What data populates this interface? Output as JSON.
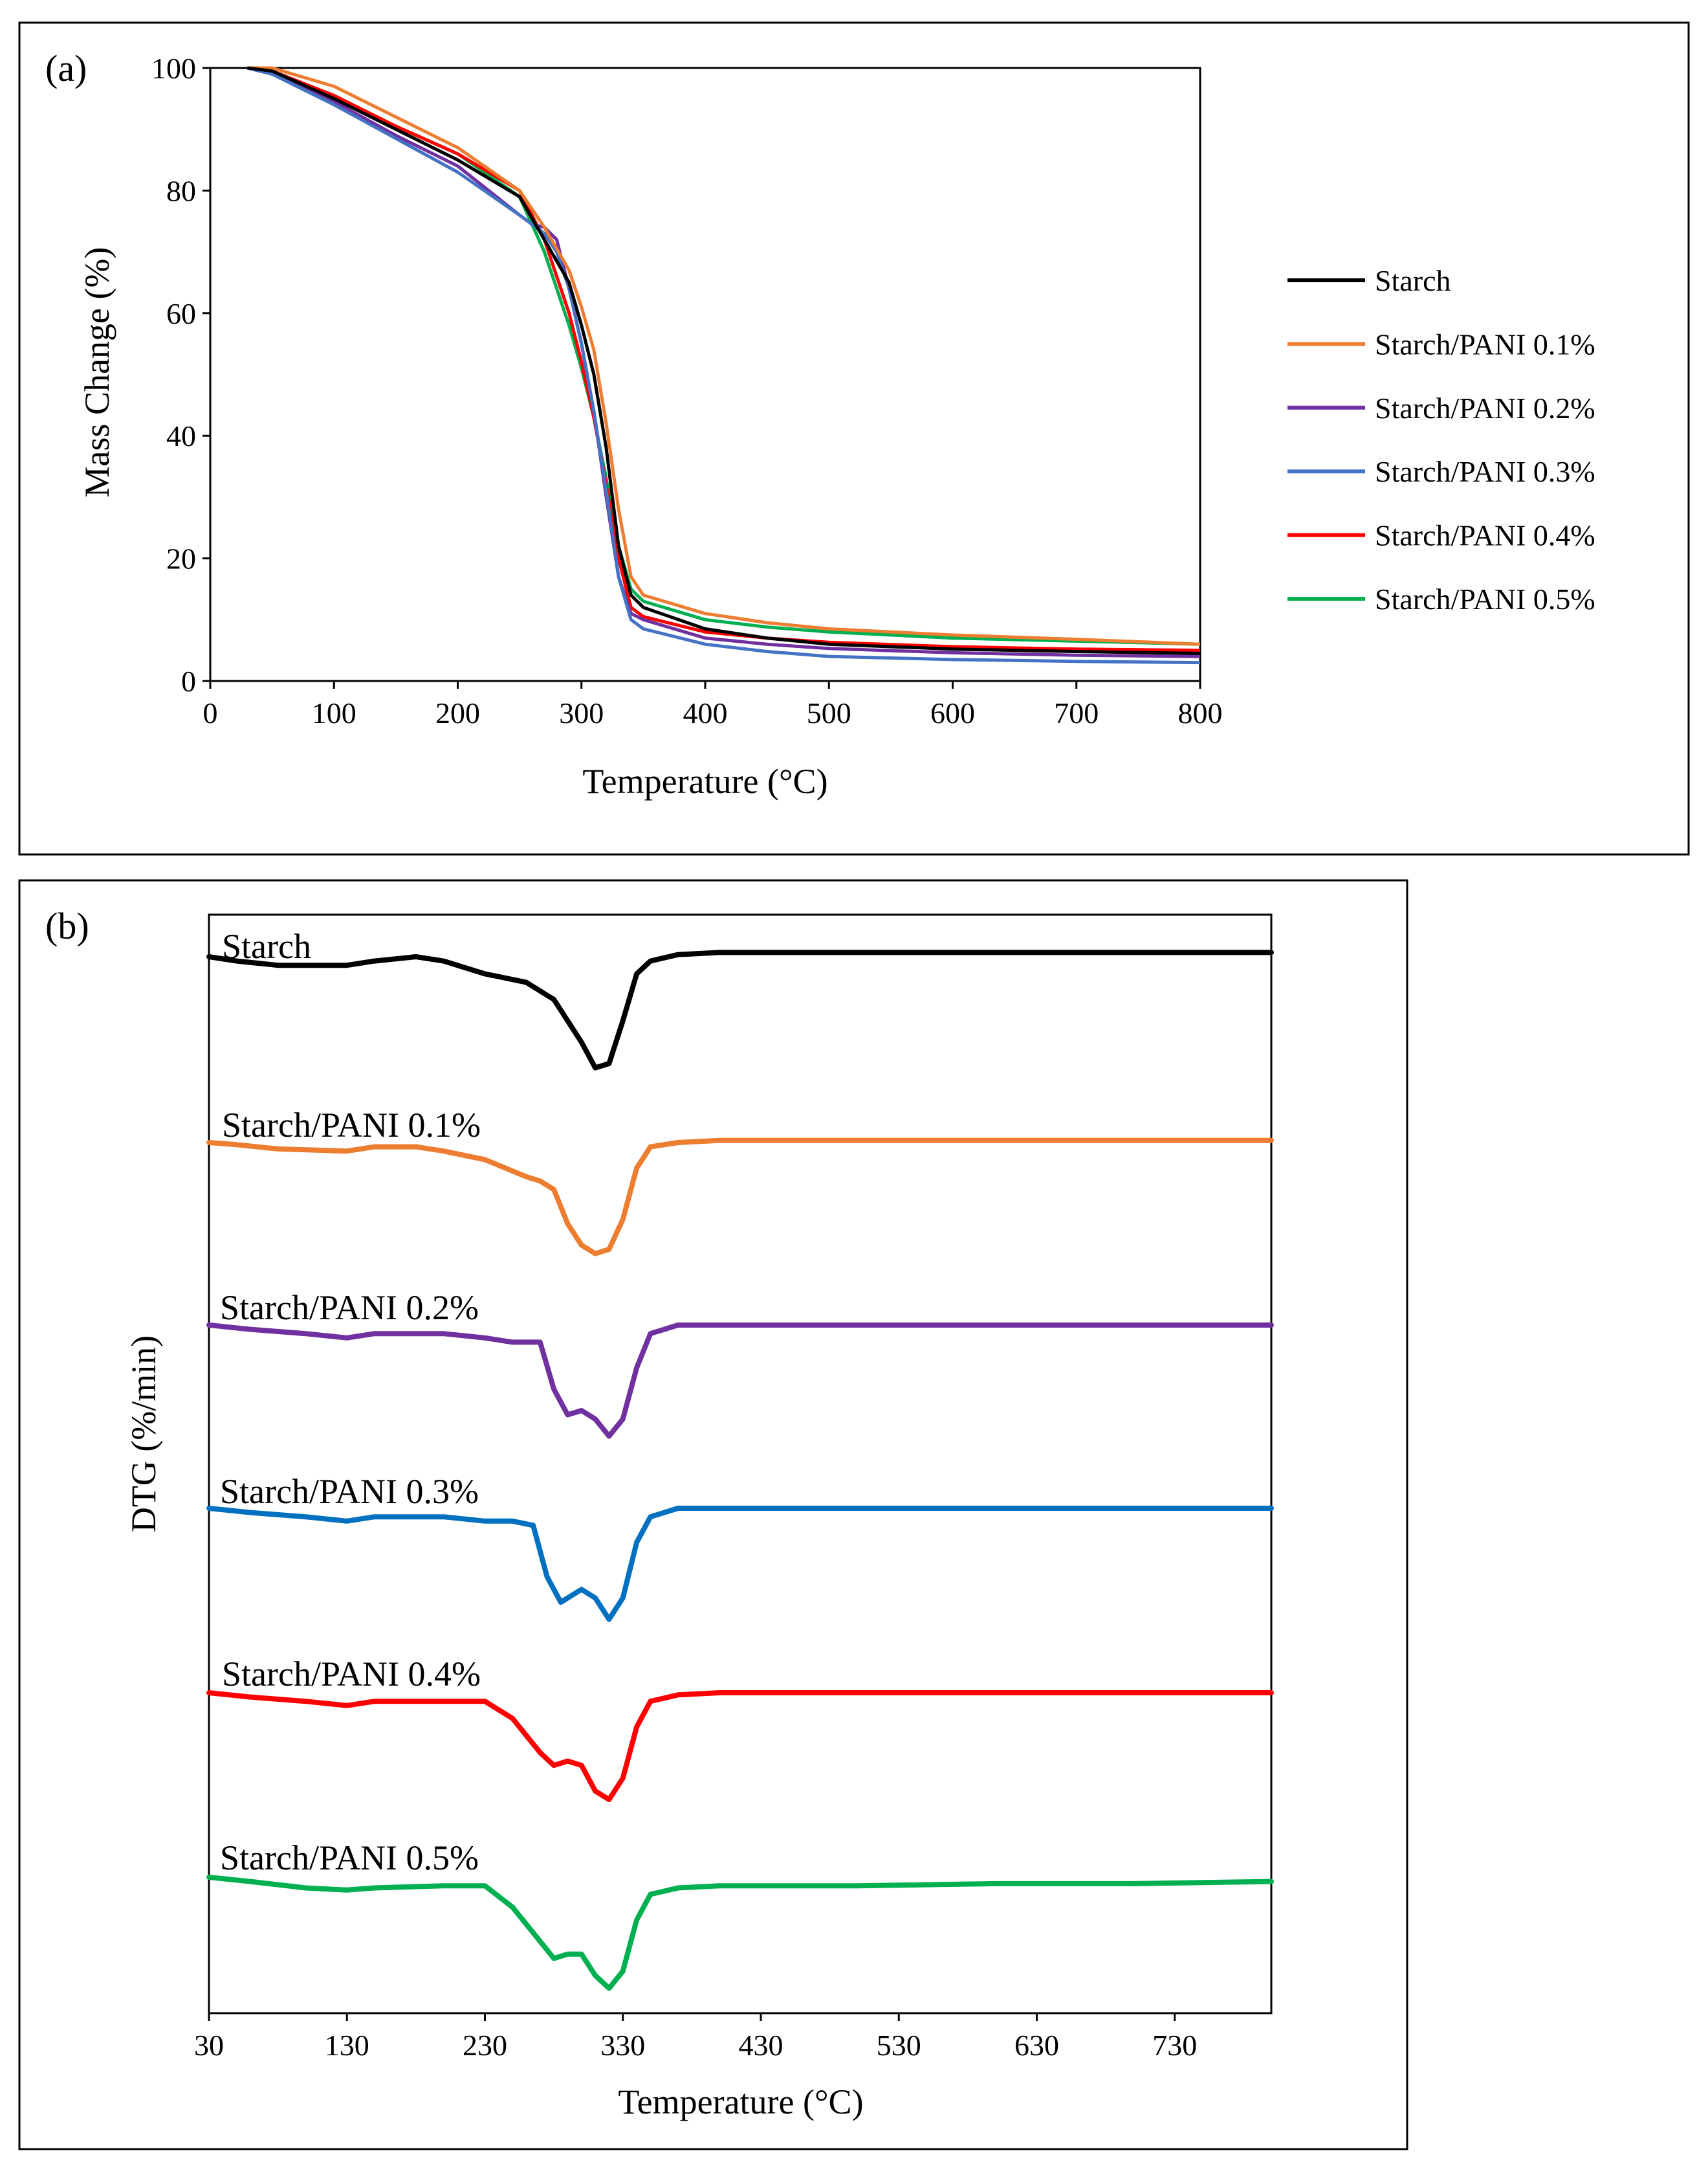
{
  "chart_data": [
    {
      "panel_label": "(a)",
      "type": "line",
      "title": "",
      "xlabel": "Temperature (°C)",
      "ylabel": "Mass Change (%)",
      "xlim": [
        0,
        800
      ],
      "ylim": [
        0,
        100
      ],
      "xticks": [
        0,
        100,
        200,
        300,
        400,
        500,
        600,
        700,
        800
      ],
      "yticks": [
        0,
        20,
        40,
        60,
        80,
        100
      ],
      "grid": false,
      "legend_position": "right",
      "series": [
        {
          "name": "Starch",
          "color": "#000000",
          "x": [
            30,
            50,
            100,
            150,
            200,
            250,
            270,
            290,
            300,
            310,
            320,
            330,
            340,
            350,
            400,
            450,
            500,
            600,
            700,
            800
          ],
          "y": [
            100,
            99.5,
            95,
            90,
            85,
            79,
            72,
            65,
            58,
            50,
            38,
            22,
            14,
            12,
            8.5,
            7,
            6,
            5.2,
            4.8,
            4.5
          ]
        },
        {
          "name": "Starch/PANI 0.1%",
          "color": "#ED7D31",
          "x": [
            30,
            50,
            100,
            150,
            200,
            250,
            270,
            290,
            300,
            310,
            320,
            330,
            340,
            350,
            400,
            450,
            500,
            600,
            700,
            800
          ],
          "y": [
            100,
            100,
            97,
            92,
            87,
            80,
            74,
            67,
            61,
            54,
            42,
            28,
            17,
            14,
            11,
            9.5,
            8.5,
            7.5,
            6.8,
            6
          ]
        },
        {
          "name": "Starch/PANI 0.2%",
          "color": "#7030A0",
          "x": [
            30,
            50,
            100,
            150,
            200,
            250,
            260,
            270,
            280,
            290,
            300,
            310,
            320,
            330,
            340,
            350,
            400,
            450,
            500,
            600,
            700,
            800
          ],
          "y": [
            100,
            99,
            94.5,
            89,
            84,
            76,
            74.5,
            74,
            72,
            64,
            55,
            44,
            30,
            17,
            11,
            10,
            7,
            6,
            5.3,
            4.6,
            4.2,
            4
          ]
        },
        {
          "name": "Starch/PANI 0.3%",
          "color": "#4472C4",
          "x": [
            30,
            50,
            100,
            150,
            200,
            250,
            270,
            280,
            290,
            300,
            310,
            320,
            330,
            340,
            350,
            400,
            450,
            500,
            600,
            700,
            800
          ],
          "y": [
            100,
            99,
            94,
            88.5,
            83,
            76,
            73,
            70,
            64,
            55,
            44,
            31,
            17,
            10,
            8.5,
            6,
            4.8,
            4,
            3.5,
            3.2,
            3
          ]
        },
        {
          "name": "Starch/PANI 0.4%",
          "color": "#FF0000",
          "x": [
            30,
            50,
            100,
            150,
            200,
            250,
            270,
            290,
            300,
            310,
            320,
            330,
            340,
            350,
            400,
            450,
            500,
            600,
            700,
            800
          ],
          "y": [
            100,
            99.5,
            95.5,
            90.5,
            86,
            80,
            72,
            60,
            52,
            43,
            32,
            20,
            12,
            10.5,
            8,
            7,
            6.3,
            5.6,
            5.2,
            5
          ]
        },
        {
          "name": "Starch/PANI 0.5%",
          "color": "#00B050",
          "x": [
            30,
            50,
            100,
            150,
            200,
            250,
            270,
            290,
            300,
            310,
            320,
            330,
            340,
            350,
            400,
            450,
            500,
            600,
            700,
            800
          ],
          "y": [
            100,
            99.5,
            95.5,
            90.5,
            86,
            79,
            70,
            58,
            51,
            43,
            33,
            22,
            15,
            13,
            10,
            8.8,
            8,
            7,
            6.5,
            6
          ]
        }
      ]
    },
    {
      "panel_label": "(b)",
      "type": "line",
      "title": "",
      "xlabel": "Temperature (°C)",
      "ylabel": "DTG (%/min)",
      "xlim": [
        30,
        800
      ],
      "xticks": [
        30,
        130,
        230,
        330,
        430,
        530,
        630,
        730
      ],
      "yticks": [],
      "grid": false,
      "legend_position": "inline labels above each curve",
      "series": [
        {
          "name": "Starch",
          "color": "#000000",
          "x": [
            30,
            50,
            80,
            130,
            150,
            180,
            200,
            230,
            260,
            280,
            300,
            310,
            320,
            330,
            340,
            350,
            370,
            400,
            500,
            600,
            700,
            800
          ],
          "y": [
            0,
            -0.1,
            -0.2,
            -0.2,
            -0.1,
            0,
            -0.1,
            -0.4,
            -0.6,
            -1.0,
            -2.0,
            -2.6,
            -2.5,
            -1.5,
            -0.4,
            -0.1,
            0.05,
            0.1,
            0.1,
            0.1,
            0.1,
            0.1
          ]
        },
        {
          "name": "Starch/PANI 0.1%",
          "color": "#ED7D31",
          "x": [
            30,
            50,
            80,
            130,
            150,
            180,
            200,
            230,
            260,
            270,
            280,
            290,
            300,
            310,
            320,
            330,
            340,
            350,
            370,
            400,
            500,
            600,
            700,
            800
          ],
          "y": [
            0,
            -0.05,
            -0.15,
            -0.2,
            -0.1,
            -0.1,
            -0.2,
            -0.4,
            -0.8,
            -0.9,
            -1.1,
            -1.9,
            -2.4,
            -2.6,
            -2.5,
            -1.8,
            -0.6,
            -0.1,
            0,
            0.05,
            0.05,
            0.05,
            0.05,
            0.05
          ]
        },
        {
          "name": "Starch/PANI 0.2%",
          "color": "#7030A0",
          "x": [
            30,
            60,
            100,
            130,
            150,
            200,
            230,
            250,
            270,
            280,
            290,
            300,
            310,
            320,
            330,
            340,
            350,
            370,
            400,
            500,
            600,
            700,
            800
          ],
          "y": [
            0,
            -0.1,
            -0.2,
            -0.3,
            -0.2,
            -0.2,
            -0.3,
            -0.4,
            -0.4,
            -1.5,
            -2.1,
            -2.0,
            -2.2,
            -2.6,
            -2.2,
            -1.0,
            -0.2,
            0,
            0,
            0,
            0,
            0,
            0
          ]
        },
        {
          "name": "Starch/PANI 0.3%",
          "color": "#0070C0",
          "x": [
            30,
            60,
            100,
            130,
            150,
            200,
            230,
            250,
            265,
            275,
            285,
            295,
            300,
            310,
            320,
            330,
            340,
            350,
            370,
            400,
            500,
            600,
            700,
            800
          ],
          "y": [
            0,
            -0.1,
            -0.2,
            -0.3,
            -0.2,
            -0.2,
            -0.3,
            -0.3,
            -0.4,
            -1.6,
            -2.2,
            -2.0,
            -1.9,
            -2.1,
            -2.6,
            -2.1,
            -0.8,
            -0.2,
            0,
            0,
            0,
            0,
            0,
            0
          ]
        },
        {
          "name": "Starch/PANI 0.4%",
          "color": "#FF0000",
          "x": [
            30,
            60,
            100,
            130,
            150,
            200,
            230,
            250,
            270,
            280,
            290,
            300,
            310,
            320,
            330,
            340,
            350,
            370,
            400,
            500,
            600,
            700,
            800
          ],
          "y": [
            0,
            -0.1,
            -0.2,
            -0.3,
            -0.2,
            -0.2,
            -0.2,
            -0.6,
            -1.4,
            -1.7,
            -1.6,
            -1.7,
            -2.3,
            -2.5,
            -2.0,
            -0.8,
            -0.2,
            -0.05,
            0,
            0,
            0,
            0,
            0
          ]
        },
        {
          "name": "Starch/PANI 0.5%",
          "color": "#00B050",
          "x": [
            30,
            60,
            100,
            130,
            150,
            200,
            230,
            250,
            270,
            280,
            290,
            300,
            310,
            320,
            330,
            340,
            350,
            370,
            400,
            500,
            600,
            700,
            800
          ],
          "y": [
            0,
            -0.1,
            -0.25,
            -0.3,
            -0.25,
            -0.2,
            -0.2,
            -0.7,
            -1.5,
            -1.9,
            -1.8,
            -1.8,
            -2.3,
            -2.6,
            -2.2,
            -1.0,
            -0.4,
            -0.25,
            -0.2,
            -0.2,
            -0.15,
            -0.15,
            -0.1
          ]
        }
      ]
    }
  ]
}
